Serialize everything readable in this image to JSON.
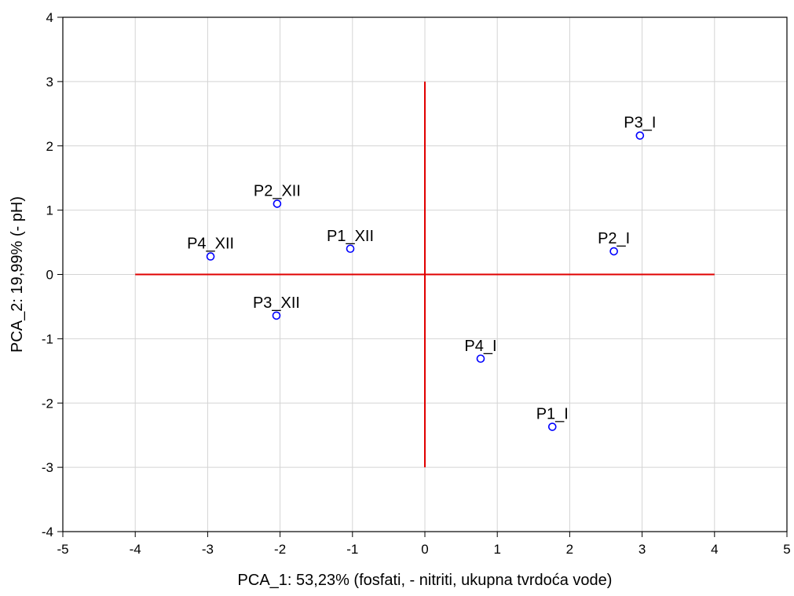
{
  "chart_data": {
    "type": "scatter",
    "title": "",
    "xlabel": "PCA_1: 53,23% (fosfati, - nitriti, ukupna tvrdoća vode)",
    "ylabel": "PCA_2: 19,99% (- pH)",
    "xlim": [
      -5,
      5
    ],
    "ylim": [
      -4,
      4
    ],
    "xticks": [
      -5,
      -4,
      -3,
      -2,
      -1,
      0,
      1,
      2,
      3,
      4,
      5
    ],
    "yticks": [
      -4,
      -3,
      -2,
      -1,
      0,
      1,
      2,
      3,
      4
    ],
    "grid": true,
    "points": [
      {
        "label": "P3_I",
        "x": 2.97,
        "y": 2.16
      },
      {
        "label": "P2_XII",
        "x": -2.04,
        "y": 1.1
      },
      {
        "label": "P1_XII",
        "x": -1.03,
        "y": 0.4
      },
      {
        "label": "P4_XII",
        "x": -2.96,
        "y": 0.28
      },
      {
        "label": "P2_I",
        "x": 2.61,
        "y": 0.36
      },
      {
        "label": "P3_XII",
        "x": -2.05,
        "y": -0.64
      },
      {
        "label": "P4_I",
        "x": 0.77,
        "y": -1.31
      },
      {
        "label": "P1_I",
        "x": 1.76,
        "y": -2.37
      }
    ],
    "reference_lines": [
      {
        "orientation": "horizontal",
        "at": 0,
        "from": -4,
        "to": 4
      },
      {
        "orientation": "vertical",
        "at": 0,
        "from": -3,
        "to": 3
      }
    ],
    "colors": {
      "points": "#0000ff",
      "reference_lines": "#e00000",
      "grid": "#d4d4d4",
      "axes": "#000000"
    }
  }
}
